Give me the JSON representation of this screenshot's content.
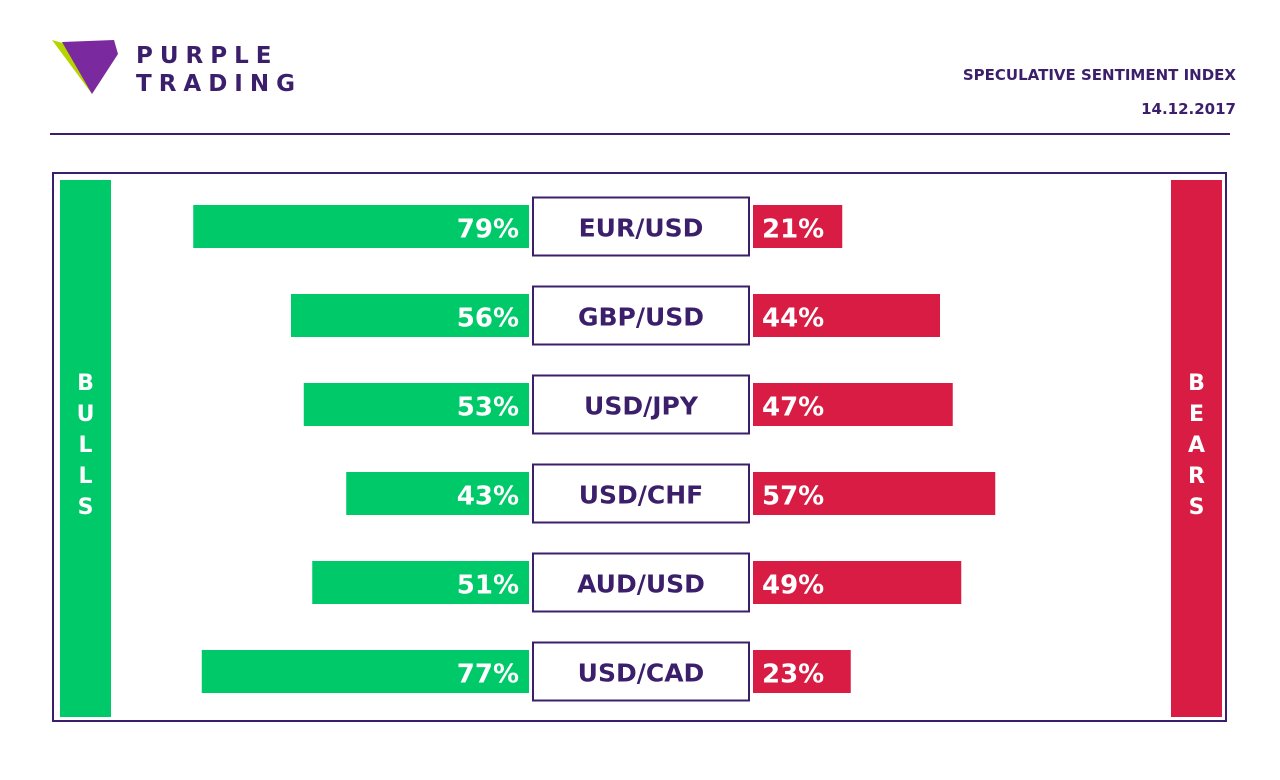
{
  "header": {
    "brand_line1": "PURPLE",
    "brand_line2": "TRADING",
    "title": "SPECULATIVE SENTIMENT INDEX",
    "date": "14.12.2017"
  },
  "side_labels": {
    "bulls": "BULLS",
    "bears": "BEARS"
  },
  "colors": {
    "bull": "#00c96a",
    "bear": "#d91c43",
    "purple": "#3c1f6b",
    "logo_purple": "#7a2a9e",
    "logo_green": "#b6d400"
  },
  "chart_data": {
    "type": "bar",
    "categories": [
      "EUR/USD",
      "GBP/USD",
      "USD/JPY",
      "USD/CHF",
      "AUD/USD",
      "USD/CAD"
    ],
    "series": [
      {
        "name": "BULLS",
        "values": [
          79,
          56,
          53,
          43,
          51,
          77
        ]
      },
      {
        "name": "BEARS",
        "values": [
          21,
          44,
          47,
          57,
          49,
          23
        ]
      }
    ],
    "value_labels": {
      "BULLS": [
        "79%",
        "56%",
        "53%",
        "43%",
        "51%",
        "77%"
      ],
      "BEARS": [
        "21%",
        "44%",
        "47%",
        "57%",
        "49%",
        "23%"
      ]
    },
    "xlim": [
      0,
      100
    ],
    "title": "SPECULATIVE SENTIMENT INDEX",
    "grid": false
  }
}
